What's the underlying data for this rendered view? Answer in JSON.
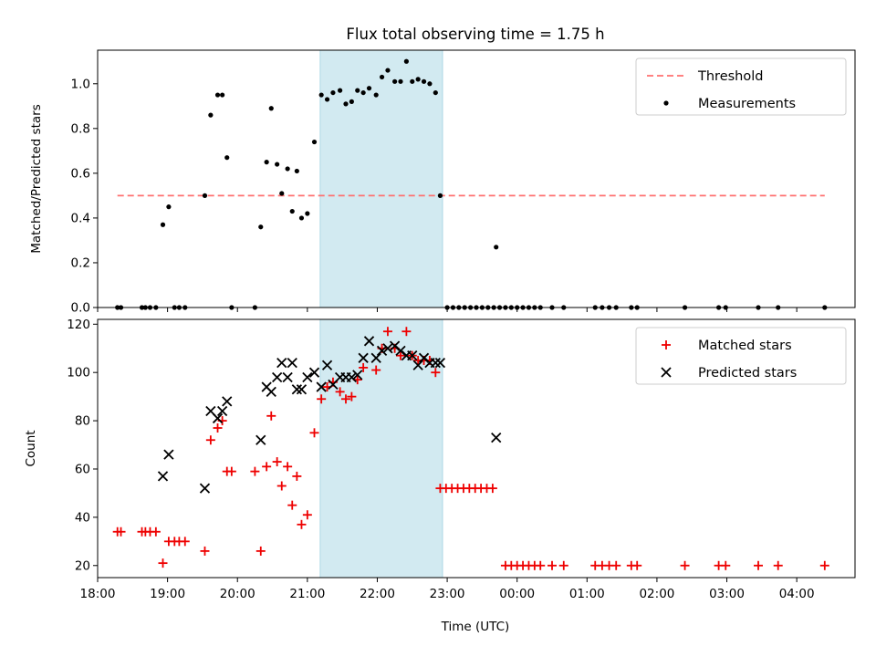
{
  "title": "Flux total observing time = 1.75 h",
  "xlabel": "Time (UTC)",
  "colors": {
    "threshold": "#ff7070",
    "measurement": "#000000",
    "matched": "#ee0000",
    "predicted": "#000000",
    "shade": "#add8e6"
  },
  "chart_data": [
    {
      "type": "scatter",
      "ylabel": "Matched/Predicted stars",
      "xlim": [
        "18:00",
        "04:50"
      ],
      "ylim": [
        0,
        1.15
      ],
      "yticks": [
        0.0,
        0.2,
        0.4,
        0.6,
        0.8,
        1.0
      ],
      "xticks": [
        "18:00",
        "19:00",
        "20:00",
        "21:00",
        "22:00",
        "23:00",
        "00:00",
        "01:00",
        "02:00",
        "03:00",
        "04:00"
      ],
      "legend_position": "top-right",
      "shaded_interval": [
        "21:11",
        "22:56"
      ],
      "threshold": {
        "name": "Threshold",
        "value": 0.5,
        "from": "18:17",
        "to": "04:24"
      },
      "series": [
        {
          "name": "Measurements",
          "points": [
            [
              "18:17",
              0
            ],
            [
              "18:20",
              0
            ],
            [
              "18:38",
              0
            ],
            [
              "18:41",
              0
            ],
            [
              "18:45",
              0
            ],
            [
              "18:50",
              0
            ],
            [
              "18:56",
              0.37
            ],
            [
              "19:01",
              0.45
            ],
            [
              "19:06",
              0
            ],
            [
              "19:10",
              0
            ],
            [
              "19:15",
              0
            ],
            [
              "19:32",
              0.5
            ],
            [
              "19:37",
              0.86
            ],
            [
              "19:43",
              0.95
            ],
            [
              "19:47",
              0.95
            ],
            [
              "19:51",
              0.67
            ],
            [
              "19:55",
              0
            ],
            [
              "20:15",
              0
            ],
            [
              "20:20",
              0.36
            ],
            [
              "20:25",
              0.65
            ],
            [
              "20:29",
              0.89
            ],
            [
              "20:34",
              0.64
            ],
            [
              "20:38",
              0.51
            ],
            [
              "20:43",
              0.62
            ],
            [
              "20:47",
              0.43
            ],
            [
              "20:51",
              0.61
            ],
            [
              "20:55",
              0.4
            ],
            [
              "21:00",
              0.42
            ],
            [
              "21:06",
              0.74
            ],
            [
              "21:12",
              0.95
            ],
            [
              "21:17",
              0.93
            ],
            [
              "21:22",
              0.96
            ],
            [
              "21:28",
              0.97
            ],
            [
              "21:33",
              0.91
            ],
            [
              "21:38",
              0.92
            ],
            [
              "21:43",
              0.97
            ],
            [
              "21:48",
              0.96
            ],
            [
              "21:53",
              0.98
            ],
            [
              "21:59",
              0.95
            ],
            [
              "22:04",
              1.03
            ],
            [
              "22:09",
              1.06
            ],
            [
              "22:15",
              1.01
            ],
            [
              "22:20",
              1.01
            ],
            [
              "22:25",
              1.1
            ],
            [
              "22:30",
              1.01
            ],
            [
              "22:35",
              1.02
            ],
            [
              "22:40",
              1.01
            ],
            [
              "22:45",
              1.0
            ],
            [
              "22:50",
              0.96
            ],
            [
              "22:54",
              0.5
            ],
            [
              "23:00",
              0
            ],
            [
              "23:05",
              0
            ],
            [
              "23:10",
              0
            ],
            [
              "23:15",
              0
            ],
            [
              "23:20",
              0
            ],
            [
              "23:25",
              0
            ],
            [
              "23:30",
              0
            ],
            [
              "23:35",
              0
            ],
            [
              "23:40",
              0
            ],
            [
              "23:45",
              0
            ],
            [
              "23:50",
              0
            ],
            [
              "23:55",
              0
            ],
            [
              "00:00",
              0
            ],
            [
              "00:05",
              0
            ],
            [
              "00:10",
              0
            ],
            [
              "00:15",
              0
            ],
            [
              "00:20",
              0
            ],
            [
              "00:30",
              0
            ],
            [
              "00:40",
              0
            ],
            [
              "01:07",
              0
            ],
            [
              "01:13",
              0
            ],
            [
              "01:19",
              0
            ],
            [
              "01:25",
              0
            ],
            [
              "01:38",
              0
            ],
            [
              "01:43",
              0
            ],
            [
              "02:24",
              0
            ],
            [
              "02:53",
              0
            ],
            [
              "02:59",
              0
            ],
            [
              "03:27",
              0
            ],
            [
              "03:44",
              0
            ],
            [
              "04:24",
              0
            ],
            [
              "23:42",
              0.27
            ]
          ]
        }
      ]
    },
    {
      "type": "scatter",
      "ylabel": "Count",
      "xlim": [
        "18:00",
        "04:50"
      ],
      "ylim": [
        15,
        122
      ],
      "yticks": [
        20,
        40,
        60,
        80,
        100,
        120
      ],
      "xticks": [
        "18:00",
        "19:00",
        "20:00",
        "21:00",
        "22:00",
        "23:00",
        "00:00",
        "01:00",
        "02:00",
        "03:00",
        "04:00"
      ],
      "xticklabels": [
        "18:00",
        "19:00",
        "20:00",
        "21:00",
        "22:00",
        "23:00",
        "00:00",
        "01:00",
        "02:00",
        "03:00",
        "04:00"
      ],
      "legend_position": "top-right",
      "shaded_interval": [
        "21:11",
        "22:56"
      ],
      "series": [
        {
          "name": "Matched stars",
          "marker": "+",
          "points": [
            [
              "18:17",
              34
            ],
            [
              "18:20",
              34
            ],
            [
              "18:38",
              34
            ],
            [
              "18:41",
              34
            ],
            [
              "18:45",
              34
            ],
            [
              "18:50",
              34
            ],
            [
              "18:56",
              21
            ],
            [
              "19:01",
              30
            ],
            [
              "19:06",
              30
            ],
            [
              "19:10",
              30
            ],
            [
              "19:15",
              30
            ],
            [
              "19:32",
              26
            ],
            [
              "19:37",
              72
            ],
            [
              "19:43",
              77
            ],
            [
              "19:47",
              80
            ],
            [
              "19:51",
              59
            ],
            [
              "19:55",
              59
            ],
            [
              "20:15",
              59
            ],
            [
              "20:20",
              26
            ],
            [
              "20:25",
              61
            ],
            [
              "20:29",
              82
            ],
            [
              "20:34",
              63
            ],
            [
              "20:38",
              53
            ],
            [
              "20:43",
              61
            ],
            [
              "20:47",
              45
            ],
            [
              "20:51",
              57
            ],
            [
              "20:55",
              37
            ],
            [
              "21:00",
              41
            ],
            [
              "21:06",
              75
            ],
            [
              "21:12",
              89
            ],
            [
              "21:17",
              94
            ],
            [
              "21:22",
              96
            ],
            [
              "21:28",
              92
            ],
            [
              "21:33",
              89
            ],
            [
              "21:38",
              90
            ],
            [
              "21:43",
              97
            ],
            [
              "21:48",
              102
            ],
            [
              "21:59",
              101
            ],
            [
              "22:04",
              110
            ],
            [
              "22:09",
              117
            ],
            [
              "22:15",
              110
            ],
            [
              "22:20",
              107
            ],
            [
              "22:25",
              117
            ],
            [
              "22:30",
              107
            ],
            [
              "22:35",
              105
            ],
            [
              "22:40",
              105
            ],
            [
              "22:45",
              105
            ],
            [
              "22:50",
              100
            ],
            [
              "22:54",
              52
            ],
            [
              "22:59",
              52
            ],
            [
              "23:04",
              52
            ],
            [
              "23:09",
              52
            ],
            [
              "23:14",
              52
            ],
            [
              "23:19",
              52
            ],
            [
              "23:24",
              52
            ],
            [
              "23:29",
              52
            ],
            [
              "23:34",
              52
            ],
            [
              "23:39",
              52
            ],
            [
              "23:50",
              20
            ],
            [
              "23:55",
              20
            ],
            [
              "00:00",
              20
            ],
            [
              "00:05",
              20
            ],
            [
              "00:10",
              20
            ],
            [
              "00:15",
              20
            ],
            [
              "00:20",
              20
            ],
            [
              "00:30",
              20
            ],
            [
              "00:40",
              20
            ],
            [
              "01:07",
              20
            ],
            [
              "01:13",
              20
            ],
            [
              "01:19",
              20
            ],
            [
              "01:25",
              20
            ],
            [
              "01:38",
              20
            ],
            [
              "01:43",
              20
            ],
            [
              "02:24",
              20
            ],
            [
              "02:53",
              20
            ],
            [
              "02:59",
              20
            ],
            [
              "03:27",
              20
            ],
            [
              "03:44",
              20
            ],
            [
              "04:24",
              20
            ]
          ]
        },
        {
          "name": "Predicted stars",
          "marker": "x",
          "points": [
            [
              "18:56",
              57
            ],
            [
              "19:01",
              66
            ],
            [
              "19:32",
              52
            ],
            [
              "19:37",
              84
            ],
            [
              "19:43",
              81
            ],
            [
              "19:47",
              84
            ],
            [
              "19:51",
              88
            ],
            [
              "20:20",
              72
            ],
            [
              "20:25",
              94
            ],
            [
              "20:29",
              92
            ],
            [
              "20:34",
              98
            ],
            [
              "20:38",
              104
            ],
            [
              "20:43",
              98
            ],
            [
              "20:47",
              104
            ],
            [
              "20:51",
              93
            ],
            [
              "20:55",
              93
            ],
            [
              "21:00",
              98
            ],
            [
              "21:06",
              100
            ],
            [
              "21:12",
              94
            ],
            [
              "21:17",
              103
            ],
            [
              "21:22",
              95
            ],
            [
              "21:28",
              98
            ],
            [
              "21:33",
              98
            ],
            [
              "21:38",
              98
            ],
            [
              "21:43",
              99
            ],
            [
              "21:48",
              106
            ],
            [
              "21:53",
              113
            ],
            [
              "21:59",
              106
            ],
            [
              "22:04",
              109
            ],
            [
              "22:09",
              110
            ],
            [
              "22:15",
              111
            ],
            [
              "22:20",
              109
            ],
            [
              "22:25",
              107
            ],
            [
              "22:30",
              107
            ],
            [
              "22:35",
              103
            ],
            [
              "22:40",
              106
            ],
            [
              "22:45",
              104
            ],
            [
              "22:50",
              104
            ],
            [
              "22:54",
              104
            ],
            [
              "23:42",
              73
            ]
          ]
        }
      ]
    }
  ]
}
